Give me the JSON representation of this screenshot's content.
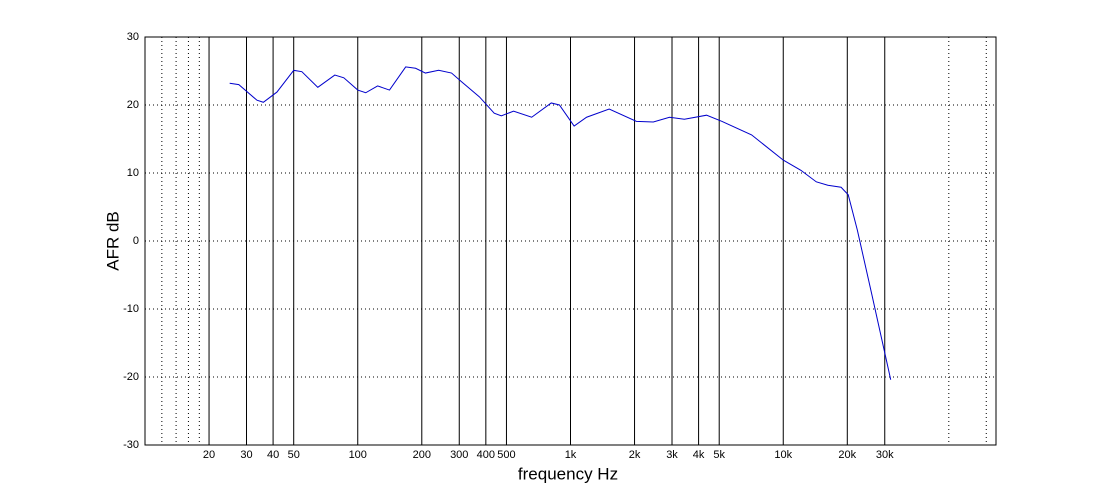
{
  "chart_data": {
    "type": "line",
    "log_x": true,
    "x_label": "frequency  Hz",
    "y_label": "AFR dB",
    "xlim": [
      10,
      100000
    ],
    "ylim": [
      -30,
      30
    ],
    "xticks": [
      20,
      30,
      40,
      50,
      100,
      200,
      300,
      400,
      500,
      {
        "value": 1000,
        "label": "1k"
      },
      {
        "value": 2000,
        "label": "2k"
      },
      {
        "value": 3000,
        "label": "3k"
      },
      {
        "value": 4000,
        "label": "4k"
      },
      {
        "value": 5000,
        "label": "5k"
      },
      {
        "value": 10000,
        "label": "10k"
      },
      {
        "value": 20000,
        "label": "20k"
      },
      {
        "value": 30000,
        "label": "30k"
      }
    ],
    "minor_xticks": [
      12,
      14,
      16,
      18,
      60000,
      90000
    ],
    "yticks": [
      -30,
      -20,
      -10,
      0,
      10,
      20,
      30
    ],
    "grid": true,
    "series": [
      {
        "color": "#0000cc",
        "x": [
          25,
          27.6,
          33.6,
          36,
          41.7,
          50,
          54.6,
          64.9,
          78,
          86,
          100,
          109,
          124,
          141,
          168,
          187,
          208,
          240,
          276,
          308,
          373,
          438,
          473,
          540,
          657,
          812,
          887,
          1040,
          1190,
          1520,
          2040,
          2450,
          2920,
          3430,
          4360,
          5140,
          7100,
          10000,
          12100,
          14300,
          16200,
          18700,
          20200,
          22300,
          26100,
          32000
        ],
        "values": [
          23.2,
          23,
          20.7,
          20.4,
          21.9,
          25.1,
          24.9,
          22.6,
          24.4,
          24,
          22.2,
          21.8,
          22.8,
          22.2,
          25.6,
          25.4,
          24.7,
          25.1,
          24.7,
          23.4,
          21.2,
          18.8,
          18.4,
          19.1,
          18.2,
          20.3,
          20,
          16.9,
          18.2,
          19.4,
          17.6,
          17.5,
          18.2,
          17.9,
          18.5,
          17.6,
          15.6,
          11.9,
          10.4,
          8.7,
          8.2,
          7.9,
          6.8,
          1.6,
          -7.9,
          -20.4
        ]
      }
    ]
  }
}
